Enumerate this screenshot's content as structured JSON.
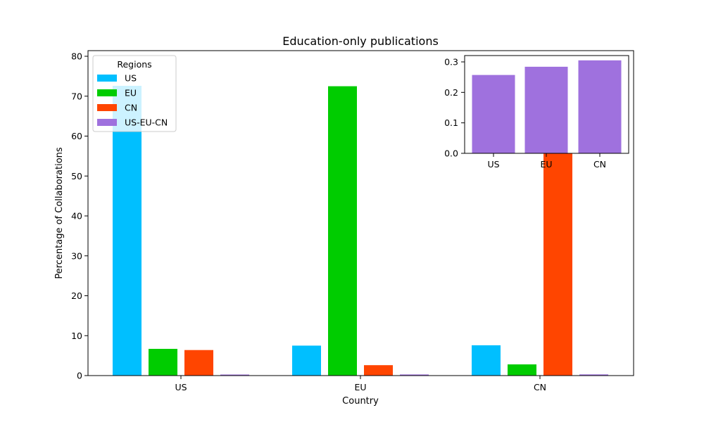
{
  "chart_data": [
    {
      "type": "bar",
      "title": "Education-only publications",
      "xlabel": "Country",
      "ylabel": "Percentage of Collaborations",
      "categories": [
        "US",
        "EU",
        "CN"
      ],
      "ylim": [
        0,
        80
      ],
      "yticks": [
        "0",
        "10",
        "20",
        "30",
        "40",
        "50",
        "60",
        "70",
        "80"
      ],
      "legend_title": "Regions",
      "legend_position": "top-left",
      "series": [
        {
          "name": "US",
          "color": "#00bfff",
          "values": [
            72.6,
            7.5,
            7.6
          ]
        },
        {
          "name": "EU",
          "color": "#00cc00",
          "values": [
            6.7,
            72.5,
            2.8
          ]
        },
        {
          "name": "CN",
          "color": "#ff4500",
          "values": [
            6.4,
            2.6,
            73.0
          ]
        },
        {
          "name": "US-EU-CN",
          "color": "#9f71de",
          "values": [
            0.26,
            0.28,
            0.3
          ]
        }
      ]
    },
    {
      "type": "bar",
      "title": "",
      "categories": [
        "US",
        "EU",
        "CN"
      ],
      "ylim": [
        0,
        0.32
      ],
      "yticks": [
        "0.0",
        "0.1",
        "0.2",
        "0.3"
      ],
      "series": [
        {
          "name": "US-EU-CN",
          "color": "#9f71de",
          "values": [
            0.257,
            0.284,
            0.305
          ]
        }
      ]
    }
  ]
}
